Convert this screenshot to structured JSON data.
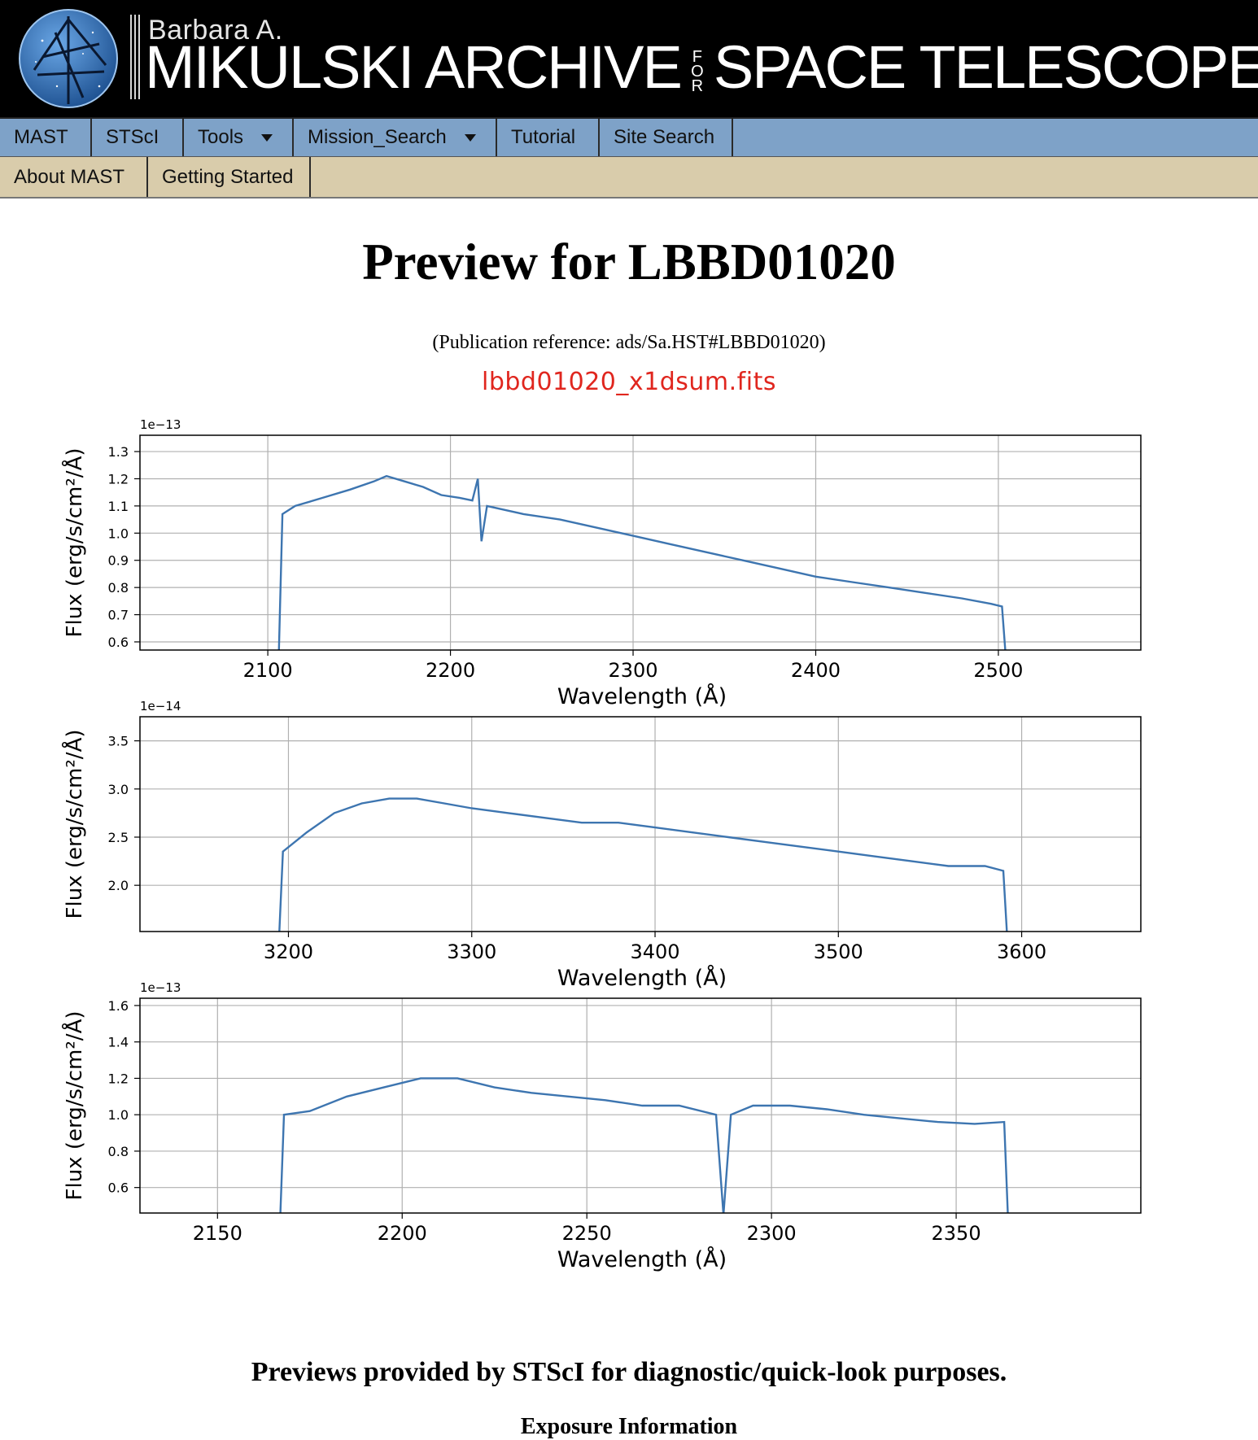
{
  "header": {
    "brand_small": "Barbara A.",
    "brand_main_left": "MIKULSKI ARCHIVE",
    "brand_for": "FOR",
    "brand_main_right": "SPACE TELESCOPES"
  },
  "nav": {
    "row1": [
      "MAST",
      "STScI",
      "Tools",
      "Mission_Search",
      "Tutorial",
      "Site Search"
    ],
    "row2": [
      "About MAST",
      "Getting Started"
    ]
  },
  "main": {
    "title": "Preview for LBBD01020",
    "pub_ref": "(Publication reference: ads/Sa.HST#LBBD01020)",
    "filename": "lbbd01020_x1dsum.fits"
  },
  "footer": {
    "note": "Previews provided by STScI for diagnostic/quick-look purposes.",
    "subheading": "Exposure Information"
  },
  "colors": {
    "line": "#3d75b0",
    "nav1": "#7ea2c8",
    "nav2": "#d9ccab",
    "filename": "#e0261e"
  },
  "chart_data": [
    {
      "type": "line",
      "xlabel": "Wavelength (Å)",
      "ylabel": "Flux (erg/s/cm²/Å)",
      "y_scale_label": "1e−13",
      "xlim": [
        2030,
        2578
      ],
      "ylim": [
        0.57,
        1.36
      ],
      "xticks": [
        2100,
        2200,
        2300,
        2400,
        2500
      ],
      "yticks": [
        0.6,
        0.7,
        0.8,
        0.9,
        1.0,
        1.1,
        1.2,
        1.3
      ],
      "ytick_labels": [
        "0.6",
        "0.7",
        "0.8",
        "0.9",
        "1.0",
        "1.1",
        "1.2",
        "1.3"
      ],
      "grid": true,
      "series": [
        {
          "x": [
            2106,
            2108,
            2115,
            2130,
            2145,
            2158,
            2165,
            2175,
            2185,
            2195,
            2205,
            2212,
            2215,
            2217,
            2220,
            2240,
            2260,
            2280,
            2300,
            2320,
            2340,
            2360,
            2380,
            2400,
            2420,
            2440,
            2460,
            2480,
            2496,
            2502,
            2504
          ],
          "y": [
            0.55,
            1.07,
            1.1,
            1.13,
            1.16,
            1.19,
            1.21,
            1.19,
            1.17,
            1.14,
            1.13,
            1.12,
            1.2,
            0.97,
            1.1,
            1.07,
            1.05,
            1.02,
            0.99,
            0.96,
            0.93,
            0.9,
            0.87,
            0.84,
            0.82,
            0.8,
            0.78,
            0.76,
            0.74,
            0.73,
            0.55
          ]
        }
      ]
    },
    {
      "type": "line",
      "xlabel": "Wavelength (Å)",
      "ylabel": "Flux (erg/s/cm²/Å)",
      "y_scale_label": "1e−14",
      "xlim": [
        3119,
        3665
      ],
      "ylim": [
        1.52,
        3.75
      ],
      "xticks": [
        3200,
        3300,
        3400,
        3500,
        3600
      ],
      "yticks": [
        2.0,
        2.5,
        3.0,
        3.5
      ],
      "ytick_labels": [
        "2.0",
        "2.5",
        "3.0",
        "3.5"
      ],
      "grid": true,
      "series": [
        {
          "x": [
            3195,
            3197,
            3210,
            3225,
            3240,
            3255,
            3270,
            3285,
            3300,
            3320,
            3340,
            3360,
            3380,
            3400,
            3420,
            3440,
            3460,
            3480,
            3500,
            3520,
            3540,
            3560,
            3580,
            3590,
            3592
          ],
          "y": [
            1.5,
            2.35,
            2.55,
            2.75,
            2.85,
            2.9,
            2.9,
            2.85,
            2.8,
            2.75,
            2.7,
            2.65,
            2.65,
            2.6,
            2.55,
            2.5,
            2.45,
            2.4,
            2.35,
            2.3,
            2.25,
            2.2,
            2.2,
            2.15,
            1.5
          ]
        }
      ]
    },
    {
      "type": "line",
      "xlabel": "Wavelength (Å)",
      "ylabel": "Flux (erg/s/cm²/Å)",
      "y_scale_label": "1e−13",
      "xlim": [
        2129,
        2400
      ],
      "ylim": [
        0.46,
        1.64
      ],
      "xticks": [
        2150,
        2200,
        2250,
        2300,
        2350
      ],
      "yticks": [
        0.6,
        0.8,
        1.0,
        1.2,
        1.4,
        1.6
      ],
      "ytick_labels": [
        "0.6",
        "0.8",
        "1.0",
        "1.2",
        "1.4",
        "1.6"
      ],
      "grid": true,
      "series": [
        {
          "x": [
            2167,
            2168,
            2175,
            2185,
            2195,
            2205,
            2215,
            2225,
            2235,
            2245,
            2255,
            2265,
            2275,
            2285,
            2287,
            2289,
            2295,
            2305,
            2315,
            2325,
            2335,
            2345,
            2355,
            2363,
            2364
          ],
          "y": [
            0.45,
            1.0,
            1.02,
            1.1,
            1.15,
            1.2,
            1.2,
            1.15,
            1.12,
            1.1,
            1.08,
            1.05,
            1.05,
            1.0,
            0.45,
            1.0,
            1.05,
            1.05,
            1.03,
            1.0,
            0.98,
            0.96,
            0.95,
            0.96,
            0.45
          ]
        }
      ]
    }
  ]
}
